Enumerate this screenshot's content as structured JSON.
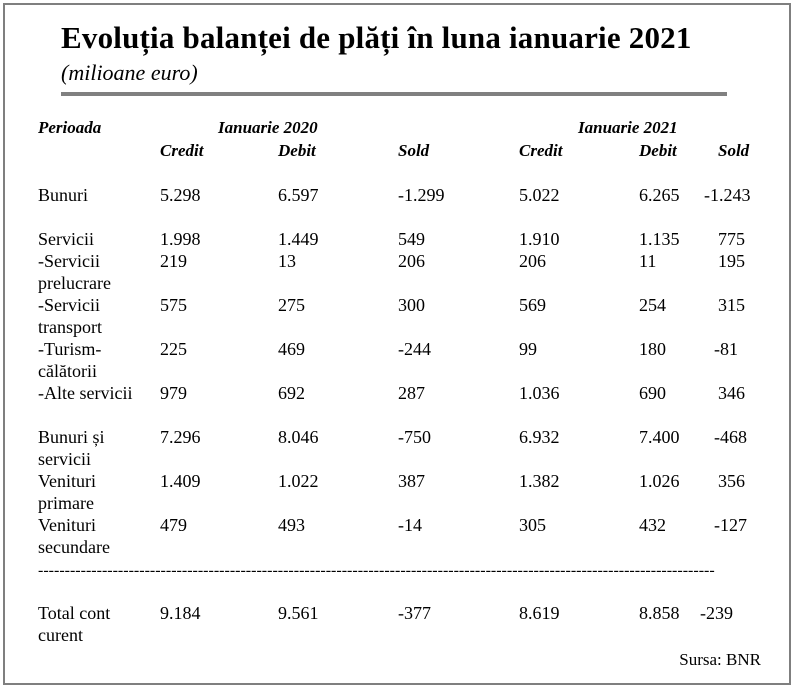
{
  "title": "Evoluția balanței de plăți în luna ianuarie 2021",
  "subtitle": "(milioane euro)",
  "header": {
    "period_label": "Perioada",
    "group_2020": "Ianuarie 2020",
    "group_2021": "Ianuarie 2021",
    "columns": [
      "Credit",
      "Debit",
      "Sold",
      "Credit",
      "Debit",
      "Sold"
    ]
  },
  "rows": [
    {
      "label": "Bunuri",
      "values": [
        "5.298",
        "6.597",
        "-1.299",
        "5.022",
        "6.265",
        "-1.243"
      ]
    },
    {
      "label": "Servicii",
      "values": [
        "1.998",
        "1.449",
        "549",
        "1.910",
        "1.135",
        "775"
      ]
    },
    {
      "label": "-Servicii prelucrare",
      "values": [
        "219",
        "13",
        "206",
        "206",
        "11",
        "195"
      ]
    },
    {
      "label": "-Servicii transport",
      "values": [
        "575",
        "275",
        "300",
        "569",
        "254",
        "315"
      ]
    },
    {
      "label": "-Turism-călătorii",
      "values": [
        "225",
        "469",
        "-244",
        "99",
        "180",
        "-81"
      ]
    },
    {
      "label": "-Alte servicii",
      "values": [
        "979",
        "692",
        "287",
        "1.036",
        "690",
        "346"
      ]
    },
    {
      "label": "Bunuri și servicii",
      "values": [
        "7.296",
        "8.046",
        "-750",
        "6.932",
        "7.400",
        "-468"
      ]
    },
    {
      "label": "Venituri primare",
      "values": [
        "1.409",
        "1.022",
        "387",
        "1.382",
        "1.026",
        "356"
      ]
    },
    {
      "label": "Venituri secundare",
      "values": [
        "479",
        "493",
        "-14",
        "305",
        "432",
        "-127"
      ]
    }
  ],
  "separator": "-------------------------------------------------------------------------------------------------------------------------------",
  "total": {
    "label": "Total cont curent",
    "values": [
      "9.184",
      "9.561",
      "-377",
      "8.619",
      "8.858",
      "-239"
    ]
  },
  "source": "Sursa: BNR"
}
